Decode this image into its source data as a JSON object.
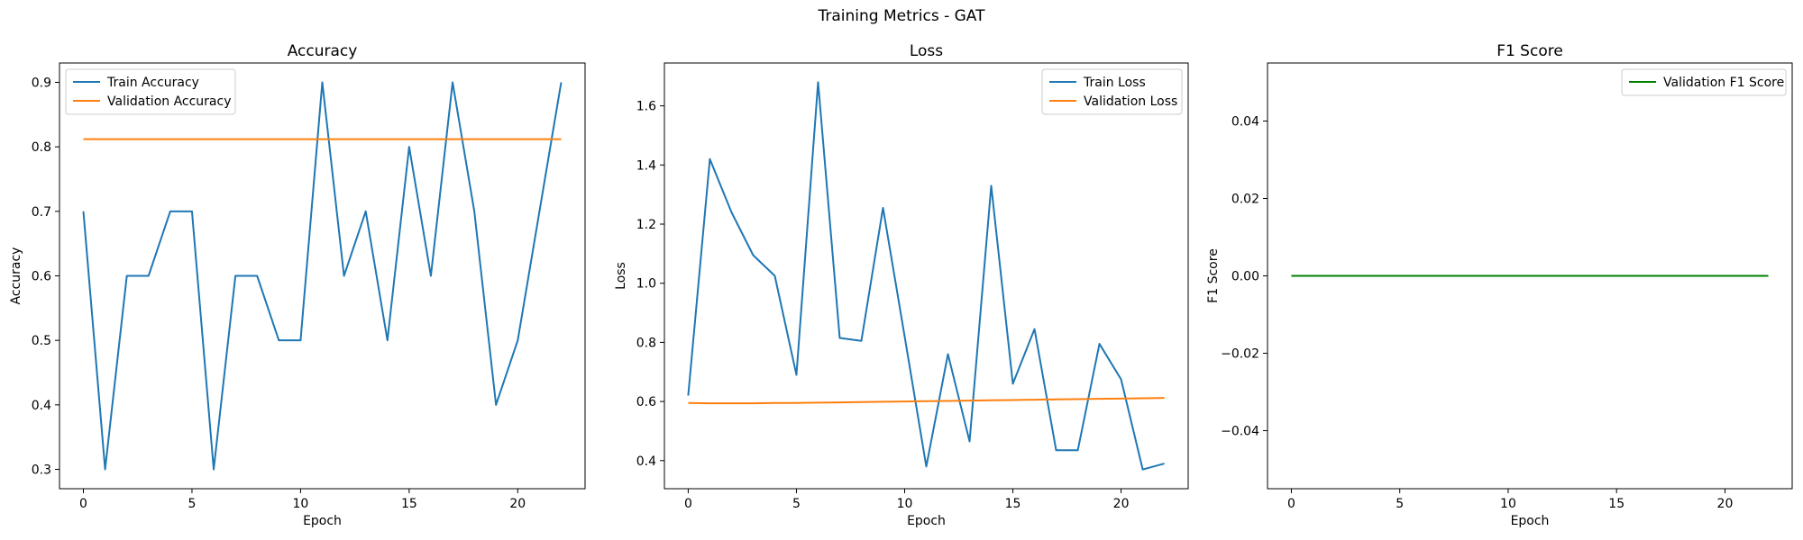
{
  "suptitle": "Training Metrics - GAT",
  "chart_data": [
    {
      "type": "line",
      "title": "Accuracy",
      "xlabel": "Epoch",
      "ylabel": "Accuracy",
      "xlim": [
        -1.1,
        23.1
      ],
      "ylim": [
        0.27,
        0.93
      ],
      "xticks": [
        0,
        5,
        10,
        15,
        20
      ],
      "yticks": [
        0.3,
        0.4,
        0.5,
        0.6,
        0.7,
        0.8,
        0.9
      ],
      "ytick_labels": [
        "0.3",
        "0.4",
        "0.5",
        "0.6",
        "0.7",
        "0.8",
        "0.9"
      ],
      "legend": "top-left",
      "grid": false,
      "series": [
        {
          "name": "Train Accuracy",
          "color": "#1f77b4",
          "x": [
            0,
            1,
            2,
            3,
            4,
            5,
            6,
            7,
            8,
            9,
            10,
            11,
            12,
            13,
            14,
            15,
            16,
            17,
            18,
            19,
            20,
            21,
            22
          ],
          "values": [
            0.7,
            0.3,
            0.6,
            0.6,
            0.7,
            0.7,
            0.3,
            0.6,
            0.6,
            0.5,
            0.5,
            0.9,
            0.6,
            0.7,
            0.5,
            0.8,
            0.6,
            0.9,
            0.7,
            0.4,
            0.5,
            0.7,
            0.9
          ]
        },
        {
          "name": "Validation Accuracy",
          "color": "#ff7f0e",
          "x": [
            0,
            22
          ],
          "values": [
            0.812,
            0.812
          ]
        }
      ]
    },
    {
      "type": "line",
      "title": "Loss",
      "xlabel": "Epoch",
      "ylabel": "Loss",
      "xlim": [
        -1.1,
        23.1
      ],
      "ylim": [
        0.305,
        1.745
      ],
      "xticks": [
        0,
        5,
        10,
        15,
        20
      ],
      "yticks": [
        0.4,
        0.6,
        0.8,
        1.0,
        1.2,
        1.4,
        1.6
      ],
      "ytick_labels": [
        "0.4",
        "0.6",
        "0.8",
        "1.0",
        "1.2",
        "1.4",
        "1.6"
      ],
      "legend": "top-right",
      "grid": false,
      "series": [
        {
          "name": "Train Loss",
          "color": "#1f77b4",
          "x": [
            0,
            1,
            2,
            3,
            4,
            5,
            6,
            7,
            8,
            9,
            10,
            11,
            12,
            13,
            14,
            15,
            16,
            17,
            18,
            19,
            20,
            21,
            22
          ],
          "values": [
            0.62,
            1.42,
            1.24,
            1.095,
            1.025,
            0.69,
            1.68,
            0.815,
            0.805,
            1.255,
            0.82,
            0.38,
            0.76,
            0.465,
            1.33,
            0.66,
            0.845,
            0.435,
            0.435,
            0.795,
            0.675,
            0.37,
            0.39
          ]
        },
        {
          "name": "Validation Loss",
          "color": "#ff7f0e",
          "x": [
            0,
            1,
            2,
            3,
            4,
            5,
            6,
            7,
            8,
            9,
            10,
            11,
            12,
            13,
            14,
            15,
            16,
            17,
            18,
            19,
            20,
            21,
            22
          ],
          "values": [
            0.595,
            0.594,
            0.594,
            0.594,
            0.595,
            0.595,
            0.596,
            0.597,
            0.598,
            0.599,
            0.6,
            0.601,
            0.602,
            0.603,
            0.604,
            0.605,
            0.606,
            0.607,
            0.608,
            0.609,
            0.61,
            0.611,
            0.612
          ]
        }
      ]
    },
    {
      "type": "line",
      "title": "F1 Score",
      "xlabel": "Epoch",
      "ylabel": "F1 Score",
      "xlim": [
        -1.1,
        23.1
      ],
      "ylim": [
        -0.055,
        0.055
      ],
      "xticks": [
        0,
        5,
        10,
        15,
        20
      ],
      "yticks": [
        -0.04,
        -0.02,
        0.0,
        0.02,
        0.04
      ],
      "ytick_labels": [
        "−0.04",
        "−0.02",
        "0.00",
        "0.02",
        "0.04"
      ],
      "legend": "top-right",
      "grid": false,
      "series": [
        {
          "name": "Validation F1 Score",
          "color": "#008000",
          "x": [
            0,
            22
          ],
          "values": [
            0,
            0
          ]
        }
      ]
    }
  ]
}
